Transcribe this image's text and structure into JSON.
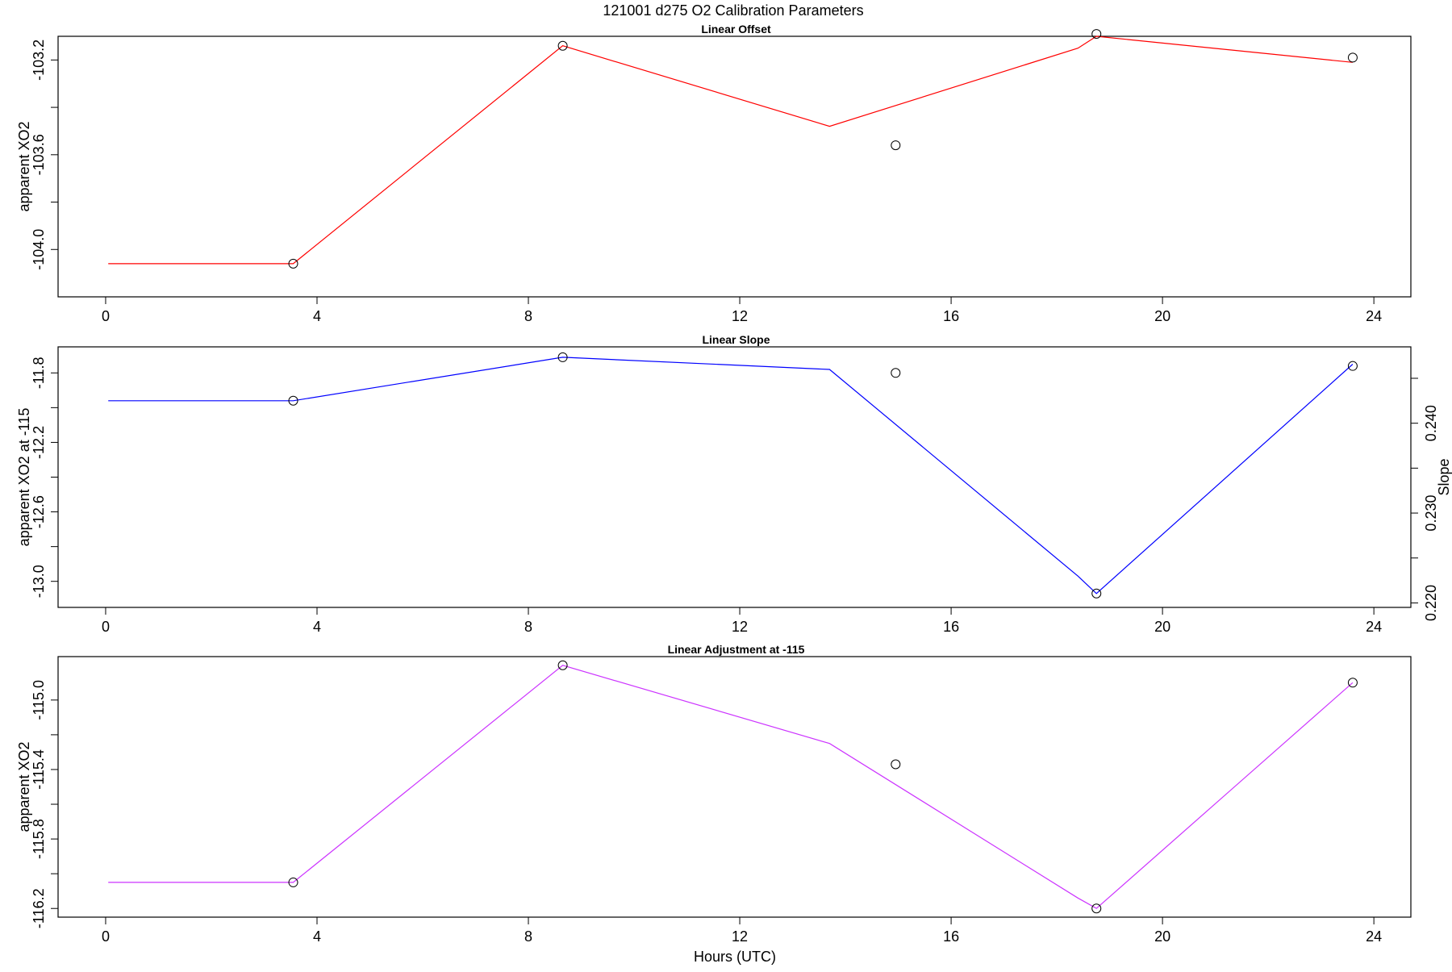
{
  "title": "121001   d275   O2 Calibration Parameters",
  "xlabel": "Hours (UTC)",
  "colors": {
    "offset": "#ff0000",
    "slope": "#0000ff",
    "adjustment": "#cc33ff",
    "points": "#000000"
  },
  "chart_data": [
    {
      "type": "line",
      "title": "Linear Offset",
      "xlabel": "",
      "ylabel": "apparent XO2",
      "xlim": [
        -0.9,
        24.7
      ],
      "ylim": [
        -104.2,
        -103.1
      ],
      "xticks": [
        0,
        4,
        8,
        12,
        16,
        20,
        24
      ],
      "yticks": [
        -104.0,
        -103.6,
        -103.2
      ],
      "ytick_labels": [
        "-104.0",
        "-103.6",
        "-103.2"
      ],
      "ytick_marks": [
        -104.0,
        -103.8,
        -103.6,
        -103.4,
        -103.2
      ],
      "line": {
        "x": [
          0.05,
          3.55,
          8.65,
          13.7,
          18.4,
          18.75,
          23.6
        ],
        "y": [
          -104.06,
          -104.06,
          -103.14,
          -103.48,
          -103.15,
          -103.1,
          -103.21
        ]
      },
      "points": {
        "x": [
          3.55,
          8.65,
          14.95,
          18.75,
          23.6
        ],
        "y": [
          -104.06,
          -103.14,
          -103.56,
          -103.09,
          -103.19
        ]
      },
      "color": "#ff0000"
    },
    {
      "type": "line",
      "title": "Linear Slope",
      "xlabel": "",
      "ylabel": "apparent XO2 at -115",
      "y2label": "Slope",
      "xlim": [
        -0.9,
        24.7
      ],
      "ylim": [
        -13.15,
        -11.65
      ],
      "xticks": [
        0,
        4,
        8,
        12,
        16,
        20,
        24
      ],
      "yticks": [
        -13.0,
        -12.6,
        -12.2,
        -11.8
      ],
      "ytick_labels": [
        "-13.0",
        "-12.6",
        "-12.2",
        "-11.8"
      ],
      "ytick_marks": [
        -13.0,
        -12.8,
        -12.6,
        -12.4,
        -12.2,
        -12.0,
        -11.8
      ],
      "y2lim": [
        0.2195,
        0.2485
      ],
      "y2ticks": [
        0.22,
        0.23,
        0.24
      ],
      "y2tick_labels": [
        "0.220",
        "0.230",
        "0.240"
      ],
      "y2tick_marks": [
        0.22,
        0.225,
        0.23,
        0.235,
        0.24,
        0.245
      ],
      "line": {
        "x": [
          0.05,
          3.55,
          8.65,
          13.7,
          18.4,
          18.75,
          23.6
        ],
        "y": [
          -11.96,
          -11.96,
          -11.71,
          -11.78,
          -12.97,
          -13.07,
          -11.75
        ]
      },
      "points": {
        "x": [
          3.55,
          8.65,
          14.95,
          18.75,
          23.6
        ],
        "y": [
          -11.96,
          -11.71,
          -11.8,
          -13.07,
          -11.76
        ]
      },
      "color": "#0000ff"
    },
    {
      "type": "line",
      "title": "Linear Adjustment at -115",
      "xlabel": "Hours (UTC)",
      "ylabel": "apparent XO2",
      "xlim": [
        -0.9,
        24.7
      ],
      "ylim": [
        -116.25,
        -114.75
      ],
      "xticks": [
        0,
        4,
        8,
        12,
        16,
        20,
        24
      ],
      "yticks": [
        -116.2,
        -115.8,
        -115.4,
        -115.0
      ],
      "ytick_labels": [
        "-116.2",
        "-115.8",
        "-115.4",
        "-115.0"
      ],
      "ytick_marks": [
        -116.2,
        -116.0,
        -115.8,
        -115.6,
        -115.4,
        -115.2,
        -115.0
      ],
      "line": {
        "x": [
          0.05,
          3.55,
          8.65,
          13.7,
          18.4,
          18.75,
          23.6
        ],
        "y": [
          -116.05,
          -116.05,
          -114.8,
          -115.25,
          -116.14,
          -116.2,
          -114.9
        ]
      },
      "points": {
        "x": [
          3.55,
          8.65,
          14.95,
          18.75,
          23.6
        ],
        "y": [
          -116.05,
          -114.8,
          -115.37,
          -116.2,
          -114.9
        ]
      },
      "color": "#cc33ff"
    }
  ]
}
